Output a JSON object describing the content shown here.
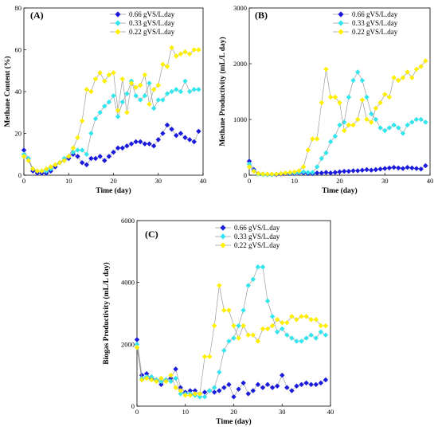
{
  "colors": {
    "s1": "#1a1adc",
    "s2": "#33e6ee",
    "s3": "#ffef00",
    "line": "#9a9a9a"
  },
  "chart_data": [
    {
      "type": "line",
      "panel": "(A)",
      "xlabel": "Time (day)",
      "ylabel": "Methane Content (%)",
      "xlim": [
        0,
        40
      ],
      "ylim": [
        0,
        80
      ],
      "xticks": [
        0,
        10,
        20,
        30,
        40
      ],
      "yticks": [
        0,
        20,
        40,
        60,
        80
      ],
      "legend_position": "top-right",
      "x": [
        0,
        1,
        2,
        3,
        4,
        5,
        6,
        7,
        8,
        9,
        10,
        11,
        12,
        13,
        14,
        15,
        16,
        17,
        18,
        19,
        20,
        21,
        22,
        23,
        24,
        25,
        26,
        27,
        28,
        29,
        30,
        31,
        32,
        33,
        34,
        35,
        36,
        37,
        38,
        39
      ],
      "series": [
        {
          "name": "0.66 gVS/L.day",
          "values": [
            12,
            8,
            2,
            1,
            1,
            1,
            2,
            4,
            6,
            7,
            8,
            10,
            9,
            6,
            5,
            8,
            8,
            9,
            7,
            9,
            11,
            13,
            13,
            14,
            15,
            16,
            16,
            15,
            15,
            14,
            17,
            20,
            24,
            22,
            19,
            20,
            18,
            17,
            16,
            21
          ]
        },
        {
          "name": "0.33 gVS/L.day",
          "values": [
            10,
            8,
            3,
            2,
            2,
            2,
            3,
            5,
            6,
            8,
            9,
            11,
            12,
            12,
            10,
            20,
            27,
            30,
            33,
            35,
            38,
            28,
            35,
            39,
            45,
            38,
            36,
            38,
            44,
            32,
            36,
            36,
            39,
            40,
            41,
            40,
            45,
            40,
            41,
            41
          ]
        },
        {
          "name": "0.22 gVS/L.day",
          "values": [
            9,
            7,
            3,
            2,
            2,
            3,
            4,
            5,
            6,
            7,
            9,
            13,
            18,
            26,
            41,
            40,
            46,
            49,
            45,
            48,
            49,
            31,
            46,
            30,
            44,
            42,
            43,
            48,
            34,
            41,
            43,
            53,
            52,
            61,
            57,
            58,
            59,
            58,
            60,
            60
          ]
        }
      ]
    },
    {
      "type": "line",
      "panel": "(B)",
      "xlabel": "Time (day)",
      "ylabel": "Methane Productivity (mL/L day)",
      "xlim": [
        0,
        40
      ],
      "ylim": [
        0,
        3000
      ],
      "xticks": [
        0,
        10,
        20,
        30,
        40
      ],
      "yticks": [
        0,
        1000,
        2000,
        3000
      ],
      "legend_position": "top-right",
      "x": [
        0,
        1,
        2,
        3,
        4,
        5,
        6,
        7,
        8,
        9,
        10,
        11,
        12,
        13,
        14,
        15,
        16,
        17,
        18,
        19,
        20,
        21,
        22,
        23,
        24,
        25,
        26,
        27,
        28,
        29,
        30,
        31,
        32,
        33,
        34,
        35,
        36,
        37,
        38,
        39
      ],
      "series": [
        {
          "name": "0.66 gVS/L.day",
          "values": [
            250,
            100,
            30,
            20,
            10,
            10,
            10,
            20,
            30,
            30,
            30,
            40,
            40,
            30,
            30,
            40,
            40,
            50,
            40,
            50,
            60,
            70,
            70,
            80,
            80,
            90,
            100,
            90,
            100,
            110,
            120,
            130,
            140,
            130,
            120,
            140,
            130,
            120,
            110,
            170
          ]
        },
        {
          "name": "0.33 gVS/L.day",
          "values": [
            200,
            80,
            20,
            10,
            10,
            10,
            20,
            30,
            40,
            40,
            40,
            50,
            60,
            50,
            50,
            150,
            300,
            400,
            600,
            700,
            900,
            950,
            1400,
            1700,
            1850,
            1700,
            1400,
            1100,
            1000,
            850,
            800,
            850,
            900,
            850,
            750,
            900,
            950,
            1000,
            1000,
            950
          ]
        },
        {
          "name": "0.22 gVS/L.day",
          "values": [
            150,
            70,
            30,
            20,
            20,
            20,
            20,
            30,
            40,
            50,
            60,
            80,
            150,
            450,
            650,
            650,
            1300,
            1900,
            1400,
            1400,
            1300,
            800,
            900,
            900,
            1000,
            1350,
            1000,
            950,
            1200,
            1300,
            1450,
            1400,
            1750,
            1700,
            1750,
            1850,
            1750,
            1900,
            1950,
            2050
          ]
        }
      ]
    },
    {
      "type": "line",
      "panel": "(C)",
      "xlabel": "Time (day)",
      "ylabel": "Biogas Productivity (mL/L day)",
      "xlim": [
        0,
        40
      ],
      "ylim": [
        0,
        6000
      ],
      "xticks": [
        0,
        10,
        20,
        30,
        40
      ],
      "yticks": [
        0,
        2000,
        4000,
        6000
      ],
      "legend_position": "top-right",
      "x": [
        0,
        1,
        2,
        3,
        4,
        5,
        6,
        7,
        8,
        9,
        10,
        11,
        12,
        13,
        14,
        15,
        16,
        17,
        18,
        19,
        20,
        21,
        22,
        23,
        24,
        25,
        26,
        27,
        28,
        29,
        30,
        31,
        32,
        33,
        34,
        35,
        36,
        37,
        38,
        39
      ],
      "series": [
        {
          "name": "0.66 gVS/L.day",
          "values": [
            2150,
            1000,
            1050,
            900,
            850,
            700,
            850,
            900,
            1200,
            600,
            450,
            500,
            500,
            400,
            450,
            500,
            450,
            500,
            600,
            700,
            300,
            550,
            750,
            400,
            500,
            700,
            600,
            700,
            600,
            650,
            1000,
            600,
            500,
            650,
            700,
            750,
            700,
            700,
            750,
            850
          ]
        },
        {
          "name": "0.33 gVS/L.day",
          "values": [
            2000,
            900,
            950,
            950,
            850,
            800,
            850,
            800,
            900,
            400,
            400,
            400,
            350,
            300,
            300,
            500,
            600,
            1100,
            1800,
            2100,
            2200,
            2600,
            3100,
            3900,
            4100,
            4500,
            4500,
            3400,
            2900,
            2400,
            2500,
            2300,
            2200,
            2100,
            2100,
            2200,
            2300,
            2200,
            2400,
            2300
          ]
        },
        {
          "name": "0.22 gVS/L.day",
          "values": [
            1900,
            850,
            900,
            850,
            800,
            900,
            800,
            1000,
            600,
            500,
            350,
            350,
            400,
            400,
            1600,
            1600,
            2600,
            3900,
            3100,
            3100,
            2600,
            2200,
            2600,
            2300,
            2300,
            2100,
            2500,
            2500,
            2600,
            2800,
            2700,
            2700,
            2900,
            2800,
            2900,
            2900,
            2800,
            2800,
            2600,
            2600
          ]
        }
      ]
    }
  ]
}
